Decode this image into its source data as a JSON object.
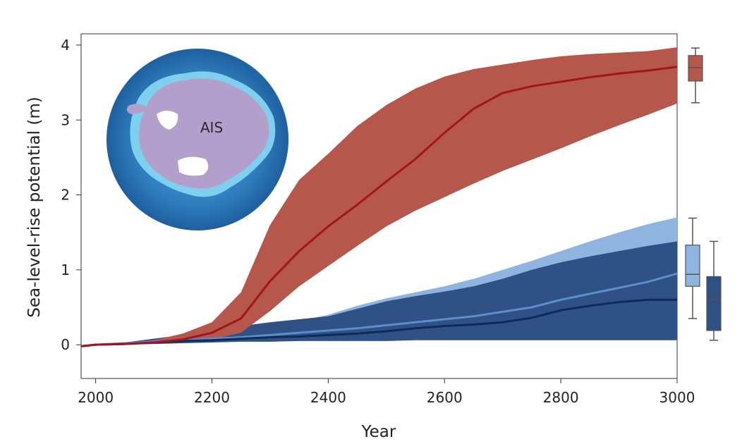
{
  "chart_data": {
    "type": "area",
    "xlabel": "Year",
    "ylabel": "Sea-level-rise potential (m)",
    "xlim": [
      1975,
      3000
    ],
    "ylim": [
      -0.45,
      4.15
    ],
    "xticks": [
      2000,
      2200,
      2400,
      2600,
      2800,
      3000
    ],
    "yticks": [
      0,
      1,
      2,
      3,
      4
    ],
    "grid": false,
    "inset_label": "AIS",
    "x": [
      1975,
      2000,
      2050,
      2100,
      2150,
      2200,
      2250,
      2300,
      2350,
      2400,
      2450,
      2500,
      2550,
      2600,
      2650,
      2700,
      2750,
      2800,
      2850,
      2900,
      2950,
      3000
    ],
    "series": [
      {
        "color": "#b5574b",
        "line_color": "#a3141f",
        "median": [
          -0.02,
          0,
          0.01,
          0.03,
          0.07,
          0.16,
          0.35,
          0.85,
          1.25,
          1.58,
          1.87,
          2.18,
          2.48,
          2.83,
          3.15,
          3.36,
          3.45,
          3.51,
          3.57,
          3.62,
          3.66,
          3.71
        ],
        "upper": [
          -0.02,
          0,
          0.02,
          0.06,
          0.15,
          0.3,
          0.7,
          1.6,
          2.2,
          2.55,
          2.92,
          3.2,
          3.42,
          3.58,
          3.68,
          3.74,
          3.8,
          3.85,
          3.88,
          3.9,
          3.92,
          3.97
        ],
        "lower": [
          -0.02,
          0,
          0.0,
          0.02,
          0.04,
          0.07,
          0.16,
          0.45,
          0.78,
          1.05,
          1.32,
          1.58,
          1.79,
          1.97,
          2.15,
          2.32,
          2.47,
          2.62,
          2.78,
          2.93,
          3.07,
          3.22
        ],
        "box": {
          "min": 3.23,
          "q1": 3.52,
          "median": 3.7,
          "q3": 3.86,
          "max": 3.96
        }
      },
      {
        "color": "#8fb4df",
        "line_color": "#5a8fca",
        "median": [
          -0.02,
          0,
          0.02,
          0.04,
          0.06,
          0.08,
          0.1,
          0.13,
          0.16,
          0.19,
          0.22,
          0.26,
          0.3,
          0.34,
          0.38,
          0.44,
          0.5,
          0.6,
          0.68,
          0.76,
          0.84,
          0.95
        ],
        "upper": [
          -0.02,
          0,
          0.03,
          0.08,
          0.12,
          0.17,
          0.22,
          0.27,
          0.32,
          0.4,
          0.52,
          0.62,
          0.7,
          0.78,
          0.88,
          1.0,
          1.12,
          1.25,
          1.38,
          1.5,
          1.61,
          1.7
        ],
        "lower": [
          -0.02,
          0,
          0.0,
          0.02,
          0.03,
          0.04,
          0.05,
          0.06,
          0.07,
          0.08,
          0.08,
          0.09,
          0.09,
          0.09,
          0.09,
          0.1,
          0.1,
          0.1,
          0.1,
          0.1,
          0.1,
          0.1
        ],
        "box": {
          "min": 0.35,
          "q1": 0.78,
          "median": 0.94,
          "q3": 1.33,
          "max": 1.69
        }
      },
      {
        "color": "#2f5185",
        "line_color": "#0c2d5c",
        "median": [
          -0.02,
          0,
          0.01,
          0.03,
          0.05,
          0.06,
          0.08,
          0.1,
          0.11,
          0.13,
          0.15,
          0.18,
          0.22,
          0.25,
          0.27,
          0.3,
          0.36,
          0.46,
          0.52,
          0.57,
          0.6,
          0.6
        ],
        "upper": [
          -0.02,
          0,
          0.03,
          0.08,
          0.13,
          0.2,
          0.25,
          0.3,
          0.34,
          0.38,
          0.48,
          0.58,
          0.65,
          0.71,
          0.78,
          0.88,
          1.0,
          1.1,
          1.18,
          1.25,
          1.32,
          1.38
        ],
        "lower": [
          -0.02,
          0,
          0.0,
          0.01,
          0.02,
          0.03,
          0.04,
          0.04,
          0.05,
          0.05,
          0.05,
          0.05,
          0.06,
          0.06,
          0.06,
          0.06,
          0.06,
          0.06,
          0.06,
          0.06,
          0.06,
          0.06
        ],
        "box": {
          "min": 0.06,
          "q1": 0.19,
          "median": 0.6,
          "q3": 0.91,
          "max": 1.38
        }
      }
    ]
  }
}
